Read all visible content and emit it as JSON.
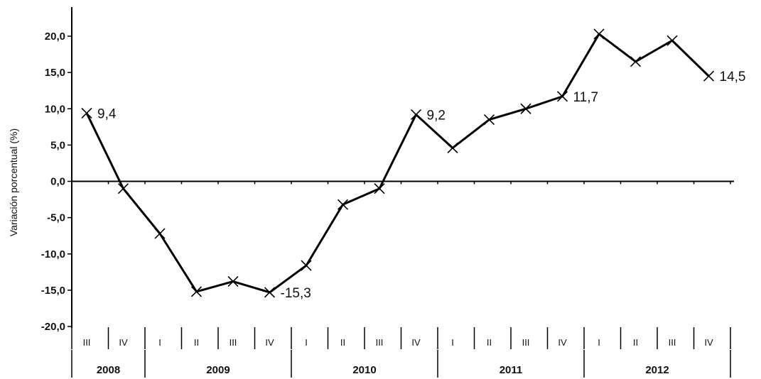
{
  "chart_data": {
    "type": "line",
    "title": "",
    "ylabel": "Variación porcentual (%)",
    "xlabel": "",
    "ylim": [
      -20,
      20
    ],
    "y_ticks": [
      20,
      15,
      10,
      5,
      0,
      -5,
      -10,
      -15,
      -20
    ],
    "y_tick_labels": [
      "20,0",
      "15,0",
      "10,0",
      "5,0",
      "0,0",
      "-5,0",
      "-10,0",
      "-15,0",
      "-20,0"
    ],
    "categories": [
      "III",
      "IV",
      "I",
      "II",
      "III",
      "IV",
      "I",
      "II",
      "III",
      "IV",
      "I",
      "II",
      "III",
      "IV",
      "I",
      "II",
      "III",
      "IV"
    ],
    "years": [
      {
        "label": "2008",
        "count": 2
      },
      {
        "label": "2009",
        "count": 4
      },
      {
        "label": "2010",
        "count": 4
      },
      {
        "label": "2011",
        "count": 4
      },
      {
        "label": "2012",
        "count": 4
      }
    ],
    "series": [
      {
        "values": [
          9.4,
          -1.0,
          -7.2,
          -15.2,
          -13.8,
          -15.3,
          -11.6,
          -3.2,
          -1.0,
          9.2,
          4.6,
          8.5,
          10.0,
          11.7,
          20.3,
          16.5,
          19.4,
          14.5
        ]
      }
    ],
    "data_labels": [
      {
        "index": 0,
        "text": "9,4"
      },
      {
        "index": 5,
        "text": "-15,3"
      },
      {
        "index": 9,
        "text": "9,2"
      },
      {
        "index": 13,
        "text": "11,7"
      },
      {
        "index": 17,
        "text": "14,5"
      }
    ],
    "marker": "x",
    "grid": false,
    "line_color": "#000000"
  }
}
